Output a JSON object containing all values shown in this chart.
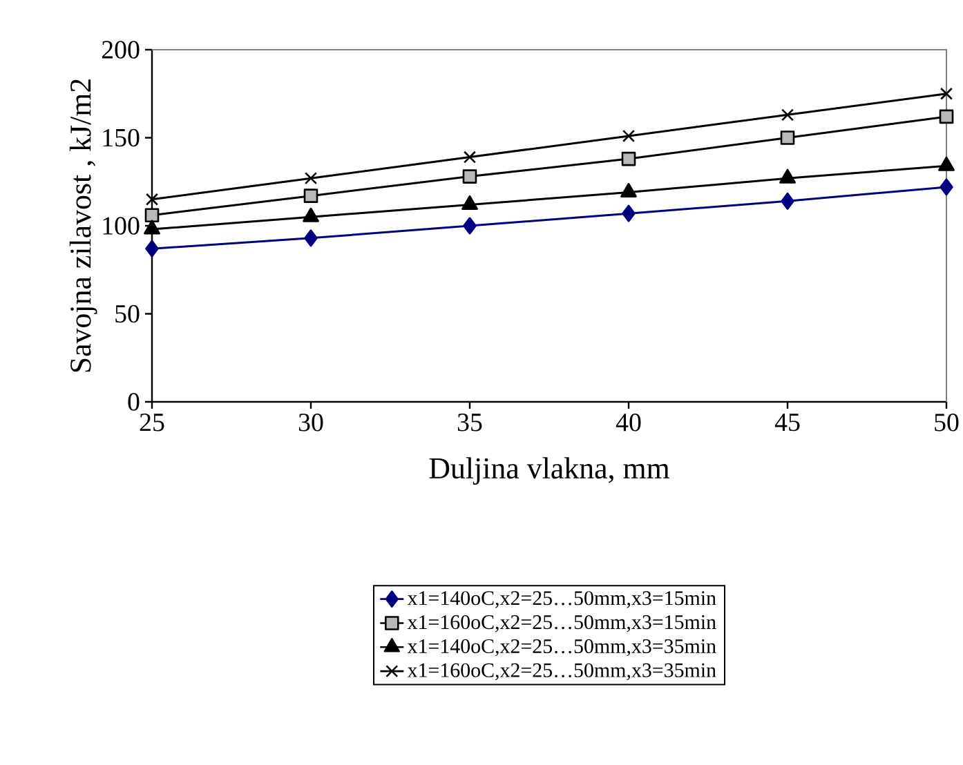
{
  "chart_data": {
    "type": "line",
    "xlabel": "Duljina vlakna, mm",
    "ylabel": "Savojna zilavost , kJ/m2",
    "x": [
      25,
      30,
      35,
      40,
      45,
      50
    ],
    "xlim": [
      25,
      50
    ],
    "xticks": [
      25,
      30,
      35,
      40,
      45,
      50
    ],
    "ylim": [
      0,
      200
    ],
    "yticks": [
      0,
      50,
      100,
      150,
      200
    ],
    "grid": false,
    "legend": "bottom",
    "line_style": "solid",
    "series": [
      {
        "name": "x1=140oC,x2=25…50mm,x3=15min",
        "color": "#000080",
        "marker": "diamond",
        "values": [
          87,
          93,
          100,
          107,
          114,
          122
        ]
      },
      {
        "name": "x1=160oC,x2=25…50mm,x3=15min",
        "color": "#000000",
        "marker": "square",
        "values": [
          106,
          117,
          128,
          138,
          150,
          162
        ]
      },
      {
        "name": "x1=140oC,x2=25…50mm,x3=35min",
        "color": "#000000",
        "marker": "triangle",
        "values": [
          98,
          105,
          112,
          119,
          127,
          134
        ]
      },
      {
        "name": "x1=160oC,x2=25…50mm,x3=35min",
        "color": "#000000",
        "marker": "cross",
        "values": [
          115,
          127,
          139,
          151,
          163,
          175
        ]
      }
    ]
  }
}
